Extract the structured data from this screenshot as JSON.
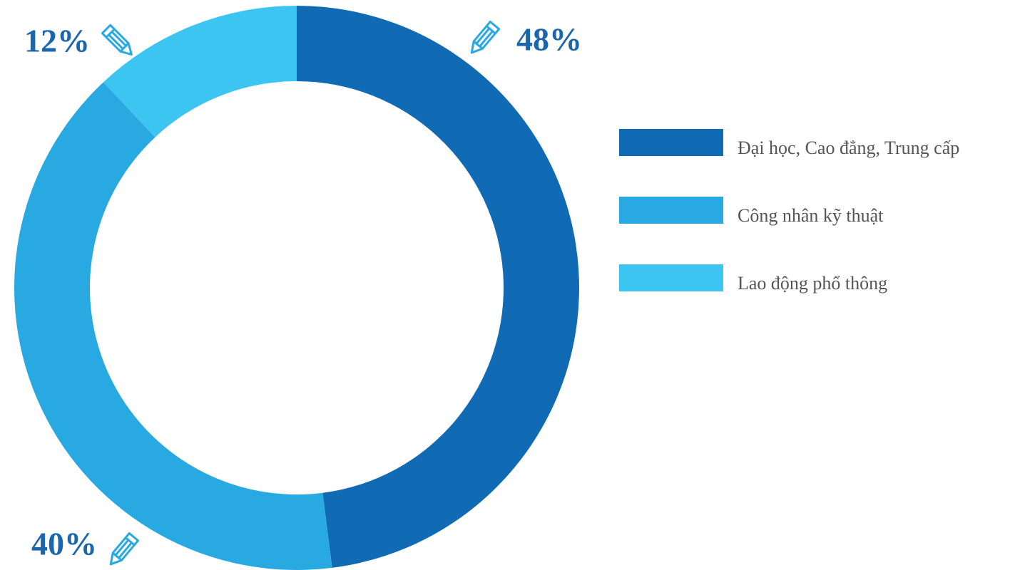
{
  "chart_data": {
    "type": "donut",
    "categories": [
      "Đại học, Cao đẳng, Trung cấp",
      "Công nhân kỹ thuật",
      "Lao động phổ thông"
    ],
    "values": [
      48,
      40,
      12
    ],
    "value_labels": [
      "48%",
      "40%",
      "12%"
    ],
    "colors": [
      "#116bb4",
      "#29a9e1",
      "#3cc5f1"
    ],
    "legend": "right"
  }
}
